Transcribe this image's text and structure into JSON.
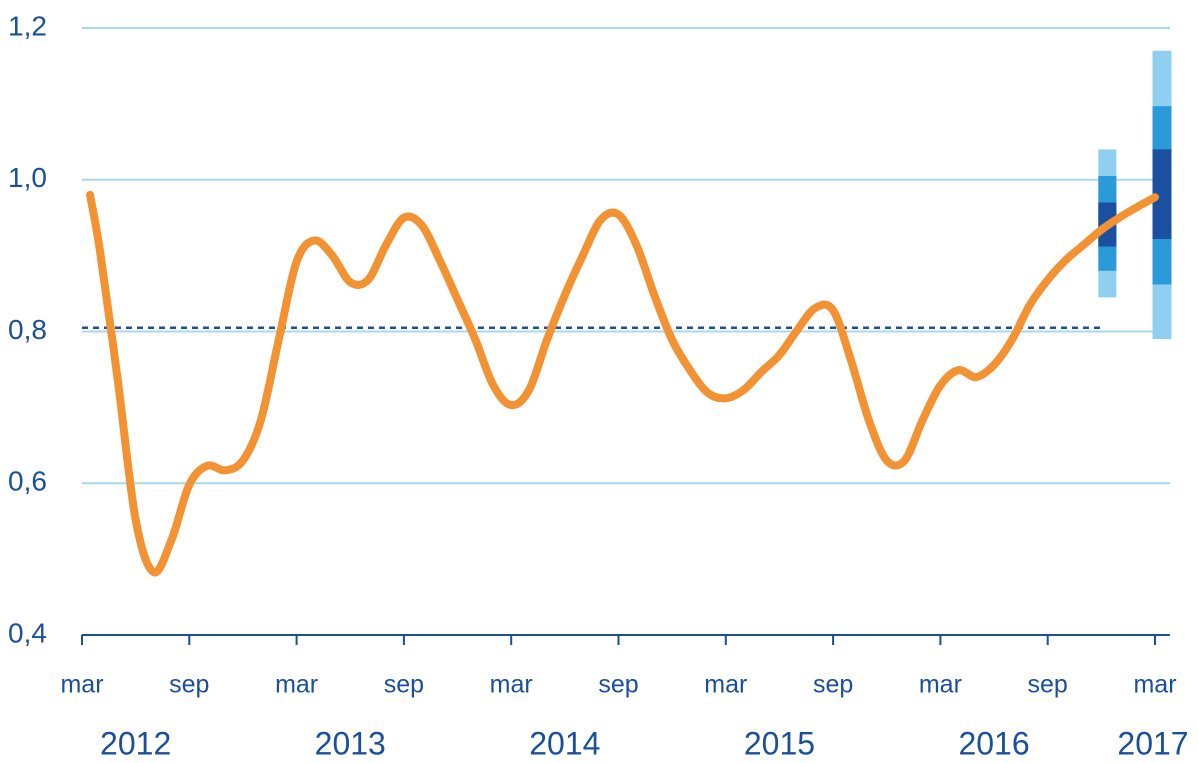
{
  "chart_data": {
    "type": "line",
    "categories": [
      "mar",
      null,
      null,
      null,
      null,
      null,
      "sep",
      null,
      null,
      null,
      null,
      null,
      "mar",
      null,
      null,
      null,
      null,
      null,
      "sep",
      null,
      null,
      null,
      null,
      null,
      "mar",
      null,
      null,
      null,
      null,
      null,
      "sep",
      null,
      null,
      null,
      null,
      null,
      "mar",
      null,
      null,
      null,
      null,
      null,
      "sep",
      null,
      null,
      null,
      null,
      null,
      "mar",
      null,
      null,
      null,
      null,
      null,
      "sep",
      null,
      null,
      null,
      null,
      null,
      "mar"
    ],
    "years": [
      "2012",
      "2013",
      "2014",
      "2015",
      "2016",
      "2017"
    ],
    "series": [
      {
        "color": "#f39233",
        "values": [
          0.98,
          0.907,
          0.736,
          0.552,
          0.483,
          0.525,
          0.598,
          0.623,
          0.617,
          0.63,
          0.683,
          0.789,
          0.892,
          0.92,
          0.9,
          0.865,
          0.868,
          0.914,
          0.95,
          0.94,
          0.894,
          0.842,
          0.789,
          0.729,
          0.703,
          0.723,
          0.789,
          0.848,
          0.9,
          0.947,
          0.954,
          0.914,
          0.848,
          0.789,
          0.749,
          0.719,
          0.712,
          0.723,
          0.747,
          0.769,
          0.802,
          0.831,
          0.828,
          0.762,
          0.683,
          0.63,
          0.63,
          0.683,
          0.729,
          0.749,
          0.74,
          0.756,
          0.789,
          0.835,
          0.868,
          0.894,
          0.914,
          0.934,
          0.95,
          0.964,
          0.977
        ]
      }
    ],
    "reference": 0.805,
    "fan": [
      {
        "bands": [
          [
            0.845,
            1.04
          ],
          [
            0.88,
            1.005
          ],
          [
            0.912,
            0.97
          ]
        ]
      },
      {
        "bands": [
          [
            0.79,
            1.17
          ],
          [
            0.862,
            1.097
          ],
          [
            0.922,
            1.04
          ]
        ]
      }
    ],
    "fan_colors": [
      "#8fd0f0",
      "#2b9ad8",
      "#1b4f9f"
    ],
    "ylim": [
      0.4,
      1.2
    ],
    "yticks": [
      {
        "value": 0.4,
        "label": "0,4"
      },
      {
        "value": 0.6,
        "label": "0,6"
      },
      {
        "value": 0.8,
        "label": "0,8"
      },
      {
        "value": 1.0,
        "label": "1,0"
      },
      {
        "value": 1.2,
        "label": "1,2"
      }
    ],
    "grid": true
  }
}
